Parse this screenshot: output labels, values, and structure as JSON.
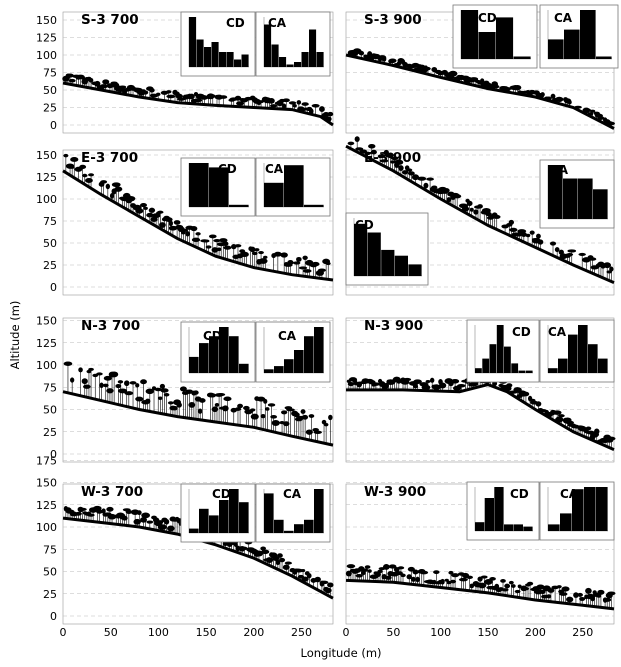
{
  "y_axis_label": "Altitude (m)",
  "x_axis_label": "Longitude (m)",
  "x_ticks": [
    "0",
    "50",
    "100",
    "150",
    "200",
    "250"
  ],
  "panels": [
    {
      "id": "S-3 700",
      "label": "S-3 700",
      "y_ticks": [
        "0",
        "25",
        "50",
        "75",
        "100",
        "125",
        "150"
      ],
      "terrain": [
        [
          0,
          60
        ],
        [
          40,
          50
        ],
        [
          80,
          40
        ],
        [
          120,
          32
        ],
        [
          160,
          28
        ],
        [
          200,
          25
        ],
        [
          240,
          22
        ],
        [
          270,
          12
        ],
        [
          283,
          0
        ]
      ],
      "canopy_height": 12,
      "histograms": [
        {
          "label": "CD",
          "values": [
            1.0,
            0.55,
            0.4,
            0.5,
            0.3,
            0.3,
            0.15,
            0.25
          ]
        },
        {
          "label": "CA",
          "values": [
            0.85,
            0.45,
            0.2,
            0.05,
            0.1,
            0.3,
            0.75,
            0.3
          ]
        }
      ]
    },
    {
      "id": "S-3 900",
      "label": "S-3 900",
      "y_ticks": [],
      "terrain": [
        [
          0,
          100
        ],
        [
          50,
          85
        ],
        [
          100,
          68
        ],
        [
          150,
          52
        ],
        [
          200,
          40
        ],
        [
          240,
          25
        ],
        [
          283,
          -5
        ]
      ],
      "canopy_height": 8,
      "histograms": [
        {
          "label": "CD",
          "values": [
            1.0,
            0.55,
            0.85,
            0.05
          ]
        },
        {
          "label": "CA",
          "values": [
            0.4,
            0.6,
            1.0,
            0.05
          ]
        }
      ]
    },
    {
      "id": "E-3 700",
      "label": "E-3 700",
      "y_ticks": [
        "0",
        "25",
        "50",
        "75",
        "100",
        "125",
        "150"
      ],
      "terrain": [
        [
          0,
          132
        ],
        [
          40,
          105
        ],
        [
          80,
          80
        ],
        [
          120,
          55
        ],
        [
          160,
          35
        ],
        [
          200,
          22
        ],
        [
          240,
          14
        ],
        [
          283,
          8
        ]
      ],
      "canopy_height": 18,
      "histograms": [
        {
          "label": "CD",
          "values": [
            1.0,
            0.9,
            0.05
          ]
        },
        {
          "label": "CA",
          "values": [
            0.55,
            0.95,
            0.05
          ]
        }
      ]
    },
    {
      "id": "E-3 900",
      "label": "E-3 900",
      "y_ticks": [],
      "terrain": [
        [
          0,
          160
        ],
        [
          50,
          132
        ],
        [
          100,
          100
        ],
        [
          150,
          70
        ],
        [
          200,
          45
        ],
        [
          240,
          25
        ],
        [
          283,
          5
        ]
      ],
      "canopy_height": 14,
      "histograms": [
        {
          "label": "CA",
          "values": [
            1.0,
            0.75,
            0.75,
            0.55
          ]
        },
        {
          "label": "CD",
          "values": [
            0.9,
            0.75,
            0.45,
            0.35,
            0.2
          ]
        }
      ]
    },
    {
      "id": "N-3 700",
      "label": "N-3 700",
      "y_ticks": [
        "0",
        "25",
        "50",
        "75",
        "100",
        "125",
        "150"
      ],
      "terrain": [
        [
          0,
          70
        ],
        [
          40,
          60
        ],
        [
          80,
          50
        ],
        [
          120,
          42
        ],
        [
          160,
          36
        ],
        [
          200,
          30
        ],
        [
          240,
          20
        ],
        [
          283,
          10
        ]
      ],
      "canopy_height": 28,
      "histograms": [
        {
          "label": "CD",
          "values": [
            0.35,
            0.65,
            0.8,
            1.0,
            0.8,
            0.2
          ]
        },
        {
          "label": "CA",
          "values": [
            0.08,
            0.15,
            0.3,
            0.5,
            0.8,
            1.0
          ]
        }
      ]
    },
    {
      "id": "N-3 900",
      "label": "N-3 900",
      "y_ticks": [],
      "terrain": [
        [
          0,
          72
        ],
        [
          60,
          72
        ],
        [
          120,
          70
        ],
        [
          150,
          78
        ],
        [
          170,
          70
        ],
        [
          200,
          50
        ],
        [
          240,
          25
        ],
        [
          283,
          5
        ]
      ],
      "canopy_height": 10,
      "histograms": [
        {
          "label": "CD",
          "values": [
            0.1,
            0.3,
            0.6,
            1.0,
            0.55,
            0.2,
            0.05,
            0.05
          ]
        },
        {
          "label": "CA",
          "values": [
            0.1,
            0.3,
            0.8,
            1.0,
            0.6,
            0.3
          ]
        }
      ]
    },
    {
      "id": "W-3 700",
      "label": "W-3 700",
      "y_ticks": [
        "0",
        "25",
        "50",
        "75",
        "100",
        "125",
        "150",
        "175"
      ],
      "terrain": [
        [
          0,
          110
        ],
        [
          40,
          105
        ],
        [
          80,
          100
        ],
        [
          120,
          92
        ],
        [
          160,
          80
        ],
        [
          200,
          65
        ],
        [
          240,
          45
        ],
        [
          283,
          20
        ]
      ],
      "canopy_height": 15,
      "histograms": [
        {
          "label": "CD",
          "values": [
            0.1,
            0.55,
            0.4,
            0.75,
            1.0,
            0.7
          ]
        },
        {
          "label": "CA",
          "values": [
            0.9,
            0.3,
            0.05,
            0.2,
            0.3,
            1.0
          ]
        }
      ]
    },
    {
      "id": "W-3 900",
      "label": "W-3 900",
      "y_ticks": [],
      "terrain": [
        [
          0,
          40
        ],
        [
          50,
          38
        ],
        [
          100,
          32
        ],
        [
          150,
          26
        ],
        [
          200,
          18
        ],
        [
          250,
          12
        ],
        [
          283,
          8
        ]
      ],
      "canopy_height": 15,
      "histograms": [
        {
          "label": "CD",
          "values": [
            0.2,
            0.75,
            1.0,
            0.15,
            0.15,
            0.1
          ]
        },
        {
          "label": "CA",
          "values": [
            0.15,
            0.4,
            0.95,
            1.0,
            1.0
          ]
        }
      ]
    }
  ],
  "colors": {
    "ink": "#000000",
    "grid": "#bbbbbb"
  }
}
